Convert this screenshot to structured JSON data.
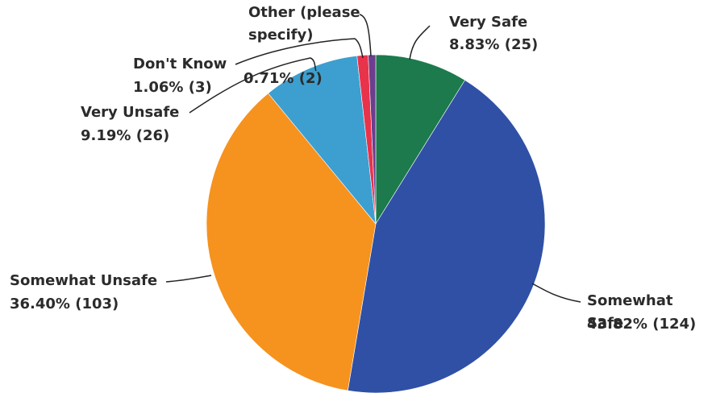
{
  "chart_data": {
    "type": "pie",
    "categories": [
      "Very Safe",
      "Somewhat Safe",
      "Somewhat Unsafe",
      "Very Unsafe",
      "Don't Know",
      "Other (please specify)"
    ],
    "values": [
      8.83,
      43.82,
      36.4,
      9.19,
      1.06,
      0.71
    ],
    "value_labels": [
      "8.83% (25)",
      "43.82% (124)",
      "36.40% (103)",
      "9.19% (26)",
      "1.06% (3)",
      "0.71% (2)"
    ],
    "colors": [
      "#1c7a4c",
      "#2f50a4",
      "#f6921e",
      "#3c9fd0",
      "#e8334b",
      "#6b3e8e"
    ]
  }
}
